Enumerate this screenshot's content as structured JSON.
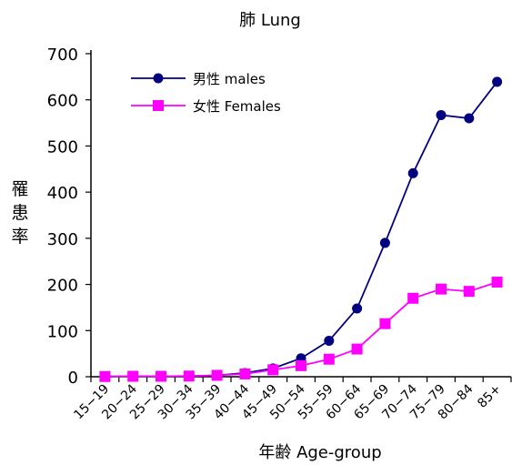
{
  "chart_data": {
    "type": "line",
    "title": "肺 Lung",
    "xlabel": "年齢 Age-group",
    "ylabel": "罹患率",
    "categories": [
      "15-19",
      "20-24",
      "25-29",
      "30-34",
      "35-39",
      "40-44",
      "45-49",
      "50-54",
      "55-59",
      "60-64",
      "65-69",
      "70-74",
      "75-79",
      "80-84",
      "85+"
    ],
    "ylim": [
      0,
      700
    ],
    "yticks": [
      0,
      100,
      200,
      300,
      400,
      500,
      600,
      700
    ],
    "grid": false,
    "legend_position": "top-left",
    "series": [
      {
        "name": "男性 males",
        "color": "#000080",
        "marker": "circle",
        "values": [
          0.5,
          1,
          1,
          1.5,
          3,
          8,
          18,
          40,
          78,
          148,
          290,
          441,
          567,
          560,
          639
        ]
      },
      {
        "name": "女性 Females",
        "color": "#ff00ff",
        "marker": "square",
        "values": [
          0.5,
          1,
          1,
          1.5,
          3,
          6,
          15,
          24,
          38,
          60,
          115,
          170,
          190,
          185,
          205
        ]
      }
    ]
  }
}
